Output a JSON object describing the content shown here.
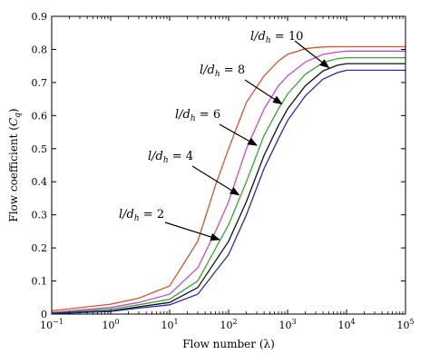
{
  "chart_data": {
    "type": "line",
    "xlabel": "Flow number (λ)",
    "ylabel": "Flow coefficient (Cq)",
    "x_scale": "log",
    "xlim": [
      0.1,
      100000
    ],
    "ylim": [
      0,
      0.9
    ],
    "x_ticks": [
      {
        "value": 0.1,
        "base": "10",
        "exp": "−1"
      },
      {
        "value": 1,
        "base": "10",
        "exp": "0"
      },
      {
        "value": 10,
        "base": "10",
        "exp": "1"
      },
      {
        "value": 100,
        "base": "10",
        "exp": "2"
      },
      {
        "value": 1000,
        "base": "10",
        "exp": "3"
      },
      {
        "value": 10000,
        "base": "10",
        "exp": "4"
      },
      {
        "value": 100000,
        "base": "10",
        "exp": "5"
      }
    ],
    "y_ticks": [
      "0",
      "0.1",
      "0.2",
      "0.3",
      "0.4",
      "0.5",
      "0.6",
      "0.7",
      "0.8",
      "0.9"
    ],
    "grid": false,
    "legend": "none",
    "series": [
      {
        "label": "l/dh = 10",
        "color": "#d4542a",
        "x": [
          0.1,
          1,
          3,
          10,
          30,
          60,
          100,
          200,
          400,
          700,
          1000,
          2000,
          3000,
          5000,
          7000,
          10000,
          100000
        ],
        "y": [
          0.01,
          0.03,
          0.048,
          0.085,
          0.22,
          0.39,
          0.5,
          0.64,
          0.72,
          0.765,
          0.785,
          0.802,
          0.806,
          0.808,
          0.808,
          0.808,
          0.808
        ]
      },
      {
        "label": "l/dh = 8",
        "color": "#c64cc6",
        "x": [
          0.1,
          1,
          3,
          10,
          30,
          60,
          100,
          200,
          400,
          700,
          1000,
          2000,
          4000,
          7000,
          10000,
          100000
        ],
        "y": [
          0.005,
          0.02,
          0.035,
          0.06,
          0.14,
          0.25,
          0.34,
          0.5,
          0.62,
          0.69,
          0.72,
          0.762,
          0.785,
          0.792,
          0.795,
          0.795
        ]
      },
      {
        "label": "l/dh = 6",
        "color": "#3aa33a",
        "x": [
          0.1,
          1,
          3,
          10,
          30,
          100,
          200,
          400,
          700,
          1000,
          2000,
          4000,
          7000,
          10000,
          100000
        ],
        "y": [
          0.003,
          0.015,
          0.028,
          0.045,
          0.1,
          0.27,
          0.4,
          0.54,
          0.62,
          0.665,
          0.725,
          0.76,
          0.772,
          0.775,
          0.775
        ]
      },
      {
        "label": "l/dh = 4",
        "color": "#111111",
        "x": [
          0.1,
          1,
          3,
          10,
          30,
          100,
          200,
          400,
          700,
          1000,
          2000,
          4000,
          7000,
          10000,
          100000
        ],
        "y": [
          0.002,
          0.01,
          0.022,
          0.035,
          0.08,
          0.22,
          0.34,
          0.48,
          0.57,
          0.62,
          0.69,
          0.735,
          0.752,
          0.757,
          0.757
        ]
      },
      {
        "label": "l/dh = 2",
        "color": "#2a2ab0",
        "x": [
          0.1,
          1,
          3,
          10,
          30,
          100,
          200,
          400,
          700,
          1000,
          2000,
          4000,
          7000,
          10000,
          100000
        ],
        "y": [
          0.001,
          0.008,
          0.018,
          0.028,
          0.06,
          0.18,
          0.3,
          0.44,
          0.53,
          0.585,
          0.66,
          0.71,
          0.73,
          0.737,
          0.737
        ]
      }
    ],
    "annotations": [
      {
        "text_prefix": "l/d",
        "subscript": "h",
        "text_suffix": " = 10",
        "target": {
          "x": 5000,
          "y": 0.745
        }
      },
      {
        "text_prefix": "l/d",
        "subscript": "h",
        "text_suffix": " = 8",
        "target": {
          "x": 800,
          "y": 0.635
        }
      },
      {
        "text_prefix": "l/d",
        "subscript": "h",
        "text_suffix": " = 6",
        "target": {
          "x": 300,
          "y": 0.51
        }
      },
      {
        "text_prefix": "l/d",
        "subscript": "h",
        "text_suffix": " = 4",
        "target": {
          "x": 150,
          "y": 0.36
        }
      },
      {
        "text_prefix": "l/d",
        "subscript": "h",
        "text_suffix": " = 2",
        "target": {
          "x": 70,
          "y": 0.225
        }
      }
    ]
  }
}
